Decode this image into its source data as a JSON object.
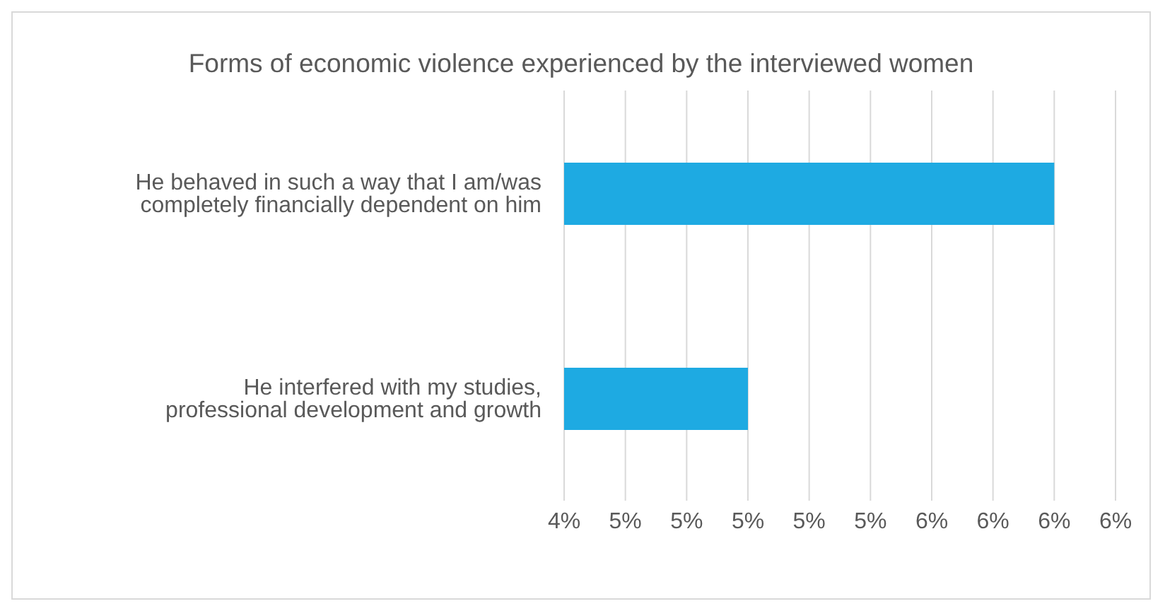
{
  "chart_data": {
    "type": "bar",
    "orientation": "horizontal",
    "title": "Forms of economic violence experienced by the interviewed women",
    "categories": [
      "He behaved in such a way that I am/was completely financially dependent on him",
      "He interfered with my studies, professional development and growth"
    ],
    "values": [
      6.0,
      5.0
    ],
    "color": "#1eaae2",
    "xlim": [
      4.4,
      6.2
    ],
    "xticks": [
      {
        "value": 4.4,
        "label": "4%"
      },
      {
        "value": 4.6,
        "label": "5%"
      },
      {
        "value": 4.8,
        "label": "5%"
      },
      {
        "value": 5.0,
        "label": "5%"
      },
      {
        "value": 5.2,
        "label": "5%"
      },
      {
        "value": 5.4,
        "label": "5%"
      },
      {
        "value": 5.6,
        "label": "6%"
      },
      {
        "value": 5.8,
        "label": "6%"
      },
      {
        "value": 6.0,
        "label": "6%"
      },
      {
        "value": 6.2,
        "label": "6%"
      }
    ],
    "grid": "x"
  }
}
